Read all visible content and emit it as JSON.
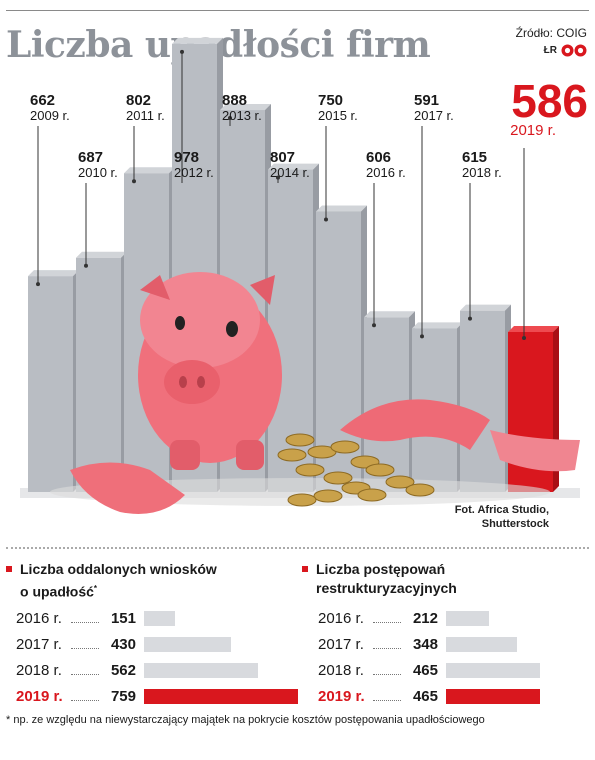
{
  "header": {
    "title": "Liczba upadłości firm",
    "source": "Źródło: COIG",
    "logo_text": "ŁR",
    "highlight_value": "586",
    "highlight_year": "2019 r."
  },
  "chart_data": {
    "type": "bar",
    "title": "Liczba upadłości firm",
    "categories": [
      "2009 r.",
      "2010 r.",
      "2011 r.",
      "2012 r.",
      "2013 r.",
      "2014 r.",
      "2015 r.",
      "2016 r.",
      "2017 r.",
      "2018 r.",
      "2019 r."
    ],
    "values": [
      662,
      687,
      802,
      978,
      888,
      807,
      750,
      606,
      591,
      615,
      586
    ],
    "highlight_index": 10,
    "colors": {
      "bar": "#b9bdc3",
      "highlight": "#d9171e"
    }
  },
  "photo_credit": [
    "Fot. Africa Studio,",
    "Shutterstock"
  ],
  "panel_left": {
    "title_line1": "Liczba oddalonych wniosków",
    "title_line2": "o upadłość",
    "title_mark": "*",
    "rows": [
      {
        "year": "2016 r.",
        "value": "151",
        "amount": 151
      },
      {
        "year": "2017 r.",
        "value": "430",
        "amount": 430
      },
      {
        "year": "2018 r.",
        "value": "562",
        "amount": 562
      },
      {
        "year": "2019 r.",
        "value": "759",
        "amount": 759
      }
    ]
  },
  "panel_right": {
    "title_line1": "Liczba postępowań",
    "title_line2": "restrukturyzacyjnych",
    "rows": [
      {
        "year": "2016 r.",
        "value": "212",
        "amount": 212
      },
      {
        "year": "2017 r.",
        "value": "348",
        "amount": 348
      },
      {
        "year": "2018 r.",
        "value": "465",
        "amount": 465
      },
      {
        "year": "2019 r.",
        "value": "465",
        "amount": 465
      }
    ]
  },
  "footnote": "* np. ze względu na niewystarczający majątek na pokrycie kosztów postępowania upadłościowego",
  "colors": {
    "accent": "#d9171e",
    "bar_gray": "#d8dade",
    "title_gray": "#8d9299"
  }
}
